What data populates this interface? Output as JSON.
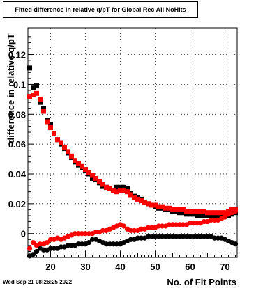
{
  "title": "Fitted difference in relative q/pT for Global Rec All NoHits",
  "timestamp": "Wed Sep 21 08:26:25 2022",
  "chart_data": {
    "type": "scatter",
    "title": "Fitted difference in relative q/pT for Global Rec All NoHits",
    "xlabel": "No. of Fit Points",
    "ylabel": "difference in relative q/pT",
    "xlim": [
      13.5,
      73.5
    ],
    "ylim": [
      -0.016,
      0.138
    ],
    "x_ticks": [
      20,
      30,
      40,
      50,
      60,
      70
    ],
    "y_ticks": [
      0,
      0.02,
      0.04,
      0.06,
      0.08,
      0.1,
      0.12
    ],
    "y_tick_labels": [
      "0",
      "0.02",
      "0.04",
      "0.06",
      "0.08",
      "0.1",
      "0.12"
    ],
    "grid": true,
    "series": [
      {
        "color": "#000000",
        "marker": "square",
        "x": [
          14,
          15,
          16,
          17,
          18,
          19,
          20,
          21,
          22,
          23,
          24,
          25,
          26,
          27,
          28,
          29,
          30,
          31,
          32,
          33,
          34,
          35,
          36,
          37,
          38,
          39,
          40,
          41,
          42,
          43,
          44,
          45,
          46,
          47,
          48,
          49,
          50,
          51,
          52,
          53,
          54,
          55,
          56,
          57,
          58,
          59,
          60,
          61,
          62,
          63,
          64,
          65,
          66,
          67,
          68,
          69,
          70,
          71,
          72,
          73
        ],
        "y": [
          0.111,
          0.098,
          0.099,
          0.088,
          0.084,
          0.076,
          0.073,
          0.067,
          0.063,
          0.06,
          0.057,
          0.054,
          0.051,
          0.048,
          0.046,
          0.044,
          0.042,
          0.04,
          0.037,
          0.036,
          0.034,
          0.032,
          0.031,
          0.03,
          0.029,
          0.031,
          0.031,
          0.031,
          0.03,
          0.027,
          0.025,
          0.024,
          0.023,
          0.021,
          0.02,
          0.019,
          0.018,
          0.017,
          0.017,
          0.016,
          0.016,
          0.015,
          0.015,
          0.014,
          0.014,
          0.013,
          0.013,
          0.013,
          0.012,
          0.012,
          0.012,
          0.012,
          0.012,
          0.012,
          0.012,
          0.012,
          0.012,
          0.012,
          0.013,
          0.014
        ]
      },
      {
        "color": "#000000",
        "marker": "circle",
        "x": [
          14,
          15,
          16,
          17,
          18,
          19,
          20,
          21,
          22,
          23,
          24,
          25,
          26,
          27,
          28,
          29,
          30,
          31,
          32,
          33,
          34,
          35,
          36,
          37,
          38,
          39,
          40,
          41,
          42,
          43,
          44,
          45,
          46,
          47,
          48,
          49,
          50,
          51,
          52,
          53,
          54,
          55,
          56,
          57,
          58,
          59,
          60,
          61,
          62,
          63,
          64,
          65,
          66,
          67,
          68,
          69,
          70,
          71,
          72,
          73
        ],
        "y": [
          -0.015,
          -0.014,
          -0.012,
          -0.01,
          -0.011,
          -0.011,
          -0.01,
          -0.01,
          -0.01,
          -0.009,
          -0.009,
          -0.008,
          -0.008,
          -0.008,
          -0.007,
          -0.007,
          -0.007,
          -0.006,
          -0.004,
          -0.004,
          -0.005,
          -0.006,
          -0.007,
          -0.007,
          -0.007,
          -0.007,
          -0.007,
          -0.006,
          -0.005,
          -0.004,
          -0.004,
          -0.003,
          -0.003,
          -0.003,
          -0.002,
          -0.002,
          -0.002,
          -0.002,
          -0.002,
          -0.002,
          -0.002,
          -0.002,
          -0.002,
          -0.002,
          -0.002,
          -0.002,
          -0.002,
          -0.002,
          -0.002,
          -0.002,
          -0.002,
          -0.002,
          -0.002,
          -0.003,
          -0.003,
          -0.003,
          -0.004,
          -0.005,
          -0.006,
          -0.007
        ]
      },
      {
        "color": "#ff0000",
        "marker": "square",
        "x": [
          14,
          15,
          16,
          17,
          18,
          19,
          20,
          21,
          22,
          23,
          24,
          25,
          26,
          27,
          28,
          29,
          30,
          31,
          32,
          33,
          34,
          35,
          36,
          37,
          38,
          39,
          40,
          41,
          42,
          43,
          44,
          45,
          46,
          47,
          48,
          49,
          50,
          51,
          52,
          53,
          54,
          55,
          56,
          57,
          58,
          59,
          60,
          61,
          62,
          63,
          64,
          65,
          66,
          67,
          68,
          69,
          70,
          71,
          72,
          73
        ],
        "y": [
          0.092,
          0.093,
          0.094,
          0.09,
          0.082,
          0.075,
          0.071,
          0.067,
          0.063,
          0.061,
          0.058,
          0.055,
          0.052,
          0.049,
          0.047,
          0.045,
          0.043,
          0.041,
          0.039,
          0.037,
          0.035,
          0.033,
          0.031,
          0.03,
          0.029,
          0.028,
          0.029,
          0.029,
          0.028,
          0.026,
          0.024,
          0.023,
          0.022,
          0.021,
          0.02,
          0.019,
          0.019,
          0.018,
          0.018,
          0.017,
          0.017,
          0.016,
          0.016,
          0.016,
          0.016,
          0.015,
          0.015,
          0.015,
          0.015,
          0.015,
          0.015,
          0.014,
          0.014,
          0.014,
          0.014,
          0.014,
          0.014,
          0.015,
          0.016,
          0.016
        ]
      },
      {
        "color": "#ff0000",
        "marker": "circle",
        "x": [
          14,
          15,
          16,
          17,
          18,
          19,
          20,
          21,
          22,
          23,
          24,
          25,
          26,
          27,
          28,
          29,
          30,
          31,
          32,
          33,
          34,
          35,
          36,
          37,
          38,
          39,
          40,
          41,
          42,
          43,
          44,
          45,
          46,
          47,
          48,
          49,
          50,
          51,
          52,
          53,
          54,
          55,
          56,
          57,
          58,
          59,
          60,
          61,
          62,
          63,
          64,
          65,
          66,
          67,
          68,
          69,
          70,
          71,
          72,
          73
        ],
        "y": [
          -0.01,
          -0.006,
          -0.008,
          -0.007,
          -0.007,
          -0.006,
          -0.004,
          -0.004,
          -0.003,
          -0.004,
          -0.003,
          -0.002,
          -0.001,
          0.0,
          0.0,
          0.0,
          0.0,
          0.0,
          0.0,
          0.001,
          0.001,
          0.002,
          0.002,
          0.003,
          0.004,
          0.005,
          0.006,
          0.005,
          0.003,
          0.002,
          0.002,
          0.002,
          0.003,
          0.003,
          0.004,
          0.004,
          0.004,
          0.005,
          0.005,
          0.005,
          0.006,
          0.006,
          0.006,
          0.006,
          0.006,
          0.006,
          0.007,
          0.007,
          0.007,
          0.007,
          0.008,
          0.008,
          0.009,
          0.009,
          0.009,
          0.01,
          0.011,
          0.013,
          0.014,
          0.015
        ]
      }
    ]
  }
}
